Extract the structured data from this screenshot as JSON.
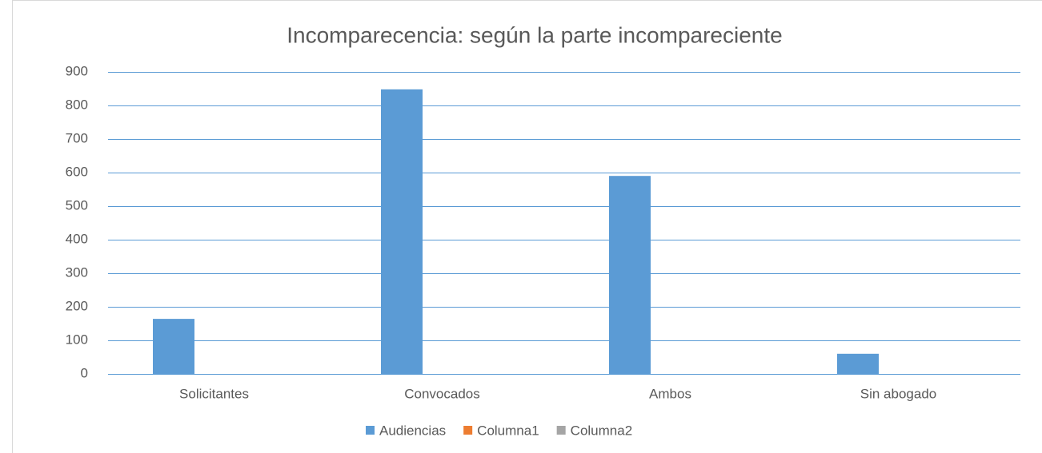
{
  "chart_data": {
    "type": "bar",
    "title": "Incomparecencia: según la parte incompareciente",
    "categories": [
      "Solicitantes",
      "Convocados",
      "Ambos",
      "Sin abogado"
    ],
    "series": [
      {
        "name": "Audiencias",
        "color": "#5b9bd5",
        "values": [
          164,
          848,
          590,
          60
        ]
      },
      {
        "name": "Columna1",
        "color": "#ed7d31",
        "values": [
          null,
          null,
          null,
          null
        ]
      },
      {
        "name": "Columna2",
        "color": "#a5a5a5",
        "values": [
          null,
          null,
          null,
          null
        ]
      }
    ],
    "ylim": [
      0,
      900
    ],
    "yticks": [
      0,
      100,
      200,
      300,
      400,
      500,
      600,
      700,
      800,
      900
    ],
    "grid": true,
    "legend": "bottom"
  }
}
